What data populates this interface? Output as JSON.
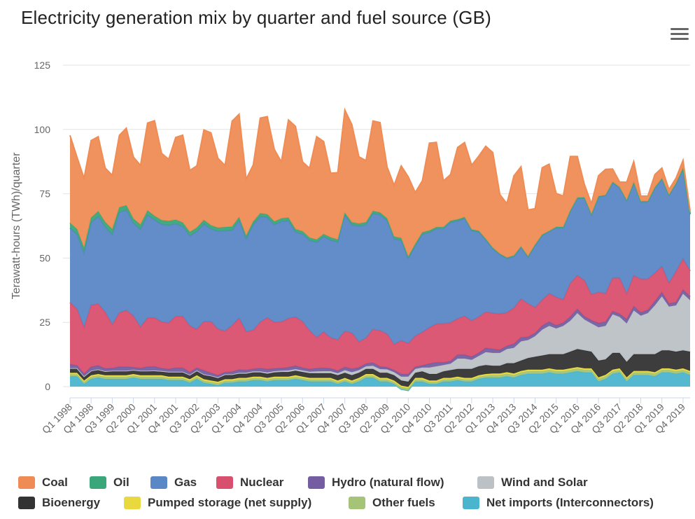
{
  "title": "Electricity generation mix by quarter and fuel source (GB)",
  "menu_icon": "hamburger-menu-icon",
  "chart_data": {
    "type": "area",
    "stacked": true,
    "title": "Electricity generation mix by quarter and fuel source (GB)",
    "xlabel": "",
    "ylabel": "Terawatt-hours (TWh)/quarter",
    "ylim": [
      0,
      125
    ],
    "yticks": [
      0,
      25,
      50,
      75,
      100,
      125
    ],
    "grid": true,
    "legend_position": "bottom",
    "x": [
      "Q1 1998",
      "Q2 1998",
      "Q3 1998",
      "Q4 1998",
      "Q1 1999",
      "Q2 1999",
      "Q3 1999",
      "Q4 1999",
      "Q1 2000",
      "Q2 2000",
      "Q3 2000",
      "Q4 2000",
      "Q1 2001",
      "Q2 2001",
      "Q3 2001",
      "Q4 2001",
      "Q1 2002",
      "Q2 2002",
      "Q3 2002",
      "Q4 2002",
      "Q1 2003",
      "Q2 2003",
      "Q3 2003",
      "Q4 2003",
      "Q1 2004",
      "Q2 2004",
      "Q3 2004",
      "Q4 2004",
      "Q1 2005",
      "Q2 2005",
      "Q3 2005",
      "Q4 2005",
      "Q1 2006",
      "Q2 2006",
      "Q3 2006",
      "Q4 2006",
      "Q1 2007",
      "Q2 2007",
      "Q3 2007",
      "Q4 2007",
      "Q1 2008",
      "Q2 2008",
      "Q3 2008",
      "Q4 2008",
      "Q1 2009",
      "Q2 2009",
      "Q3 2009",
      "Q4 2009",
      "Q1 2010",
      "Q2 2010",
      "Q3 2010",
      "Q4 2010",
      "Q1 2011",
      "Q2 2011",
      "Q3 2011",
      "Q4 2011",
      "Q1 2012",
      "Q2 2012",
      "Q3 2012",
      "Q4 2012",
      "Q1 2013",
      "Q2 2013",
      "Q3 2013",
      "Q4 2013",
      "Q1 2014",
      "Q2 2014",
      "Q3 2014",
      "Q4 2014",
      "Q1 2015",
      "Q2 2015",
      "Q3 2015",
      "Q4 2015",
      "Q1 2016",
      "Q2 2016",
      "Q3 2016",
      "Q4 2016",
      "Q1 2017",
      "Q2 2017",
      "Q3 2017",
      "Q4 2017",
      "Q1 2018",
      "Q2 2018",
      "Q3 2018",
      "Q4 2018",
      "Q1 2019",
      "Q2 2019",
      "Q3 2019",
      "Q4 2019",
      "Q1 2020"
    ],
    "x_tick_labels": [
      "Q1 1998",
      "Q4 1998",
      "Q3 1999",
      "Q2 2000",
      "Q1 2001",
      "Q4 2001",
      "Q3 2002",
      "Q2 2003",
      "Q1 2004",
      "Q4 2004",
      "Q3 2005",
      "Q2 2006",
      "Q1 2007",
      "Q4 2007",
      "Q3 2008",
      "Q2 2009",
      "Q1 2010",
      "Q4 2010",
      "Q3 2011",
      "Q2 2012",
      "Q1 2013",
      "Q4 2013",
      "Q3 2014",
      "Q2 2015",
      "Q1 2016",
      "Q4 2016",
      "Q3 2017",
      "Q2 2018",
      "Q1 2019",
      "Q4 2019"
    ],
    "series": [
      {
        "name": "Net imports (Interconnectors)",
        "color": "#4bb5ce",
        "values": [
          4,
          4,
          1,
          3,
          3.5,
          3,
          3,
          3,
          3,
          3.5,
          3,
          3,
          3,
          3,
          2.5,
          2.5,
          2.5,
          1.5,
          3,
          1.5,
          1,
          0.5,
          1.5,
          1.5,
          2,
          2,
          2.5,
          2.5,
          2,
          2.5,
          2.5,
          2.5,
          3,
          2.5,
          2,
          2,
          2,
          2,
          1,
          2,
          1,
          2,
          3.5,
          3.5,
          2,
          2,
          1,
          -1,
          -1.5,
          2,
          2,
          1,
          1,
          2,
          2,
          2.5,
          2,
          2,
          3,
          3.5,
          3.5,
          3.5,
          4,
          3.5,
          4.5,
          5,
          5,
          5,
          5.5,
          5,
          5,
          5.5,
          6,
          5.5,
          5.5,
          2,
          3,
          5,
          5.5,
          2,
          4.5,
          4.5,
          4.5,
          4,
          5.5,
          5.5,
          5,
          5.5,
          4.5
        ]
      },
      {
        "name": "Other fuels",
        "color": "#a5c477",
        "values": [
          0.8,
          0.8,
          0.8,
          0.8,
          0.8,
          0.8,
          0.8,
          0.8,
          0.8,
          0.8,
          0.8,
          0.8,
          0.8,
          0.8,
          0.8,
          0.8,
          0.8,
          0.8,
          0.8,
          0.8,
          0.8,
          0.8,
          0.8,
          0.8,
          0.8,
          0.8,
          0.8,
          0.8,
          0.8,
          0.8,
          0.8,
          0.8,
          0.8,
          0.8,
          0.8,
          0.8,
          0.8,
          0.8,
          0.8,
          0.8,
          0.8,
          0.8,
          0.8,
          0.8,
          0.8,
          0.8,
          0.8,
          0.8,
          0.8,
          0.8,
          0.8,
          0.8,
          0.8,
          0.8,
          0.8,
          0.8,
          0.8,
          0.8,
          0.8,
          0.8,
          1,
          1,
          1,
          1,
          1,
          1,
          1,
          1,
          1,
          1,
          1,
          1,
          1,
          1,
          1,
          1,
          1,
          1,
          1,
          1,
          1,
          1,
          1,
          1,
          1,
          1,
          1,
          1,
          1
        ]
      },
      {
        "name": "Pumped storage (net supply)",
        "color": "#e9d93f",
        "values": [
          0.6,
          0.6,
          0.6,
          0.6,
          0.6,
          0.6,
          0.6,
          0.6,
          0.6,
          0.6,
          0.6,
          0.6,
          0.6,
          0.6,
          0.6,
          0.6,
          0.6,
          0.6,
          0.6,
          0.6,
          0.6,
          0.6,
          0.6,
          0.6,
          0.6,
          0.6,
          0.6,
          0.6,
          0.6,
          0.6,
          0.6,
          0.6,
          0.6,
          0.6,
          0.6,
          0.6,
          0.6,
          0.6,
          0.6,
          0.6,
          0.6,
          0.6,
          0.6,
          0.6,
          0.6,
          0.6,
          0.6,
          0.6,
          0.6,
          0.6,
          0.6,
          0.6,
          0.6,
          0.6,
          0.6,
          0.6,
          0.6,
          0.6,
          0.6,
          0.6,
          0.6,
          0.6,
          0.6,
          0.6,
          0.6,
          0.6,
          0.6,
          0.6,
          0.6,
          0.6,
          0.6,
          0.6,
          0.6,
          0.6,
          0.6,
          0.6,
          0.6,
          0.6,
          0.6,
          0.6,
          0.6,
          0.6,
          0.6,
          0.6,
          0.6,
          0.6,
          0.6,
          0.6,
          0.6
        ]
      },
      {
        "name": "Bioenergy",
        "color": "#333333",
        "values": [
          1.6,
          1.6,
          1.4,
          1.6,
          1.6,
          1.4,
          1.6,
          1.6,
          1.6,
          1.4,
          1.6,
          1.6,
          1.6,
          1.4,
          1.6,
          1.6,
          1.6,
          1.4,
          1.6,
          1.6,
          1.6,
          1.4,
          1.6,
          1.6,
          1.6,
          1.6,
          1.6,
          1.6,
          1.6,
          1.6,
          1.8,
          1.8,
          1.8,
          1.8,
          1.8,
          1.8,
          1.8,
          1.8,
          2,
          2,
          2,
          2,
          2,
          2,
          2,
          2,
          2,
          2,
          2,
          2,
          2.5,
          2.5,
          2.5,
          2.5,
          3,
          3,
          3.5,
          3.5,
          3.5,
          3.5,
          3,
          3,
          3.5,
          4,
          4,
          4.5,
          5,
          5.5,
          5.5,
          6,
          6,
          6.5,
          7,
          7,
          6.5,
          6.5,
          6,
          6.5,
          6,
          6,
          6.5,
          6.5,
          6.5,
          7,
          7,
          7,
          7,
          7,
          7.5
        ]
      },
      {
        "name": "Wind and Solar",
        "color": "#bcc1c6",
        "values": [
          0.2,
          0.2,
          0.2,
          0.2,
          0.2,
          0.2,
          0.2,
          0.2,
          0.2,
          0.2,
          0.2,
          0.2,
          0.3,
          0.3,
          0.3,
          0.3,
          0.3,
          0.3,
          0.3,
          0.3,
          0.3,
          0.3,
          0.3,
          0.3,
          0.4,
          0.4,
          0.4,
          0.4,
          0.5,
          0.5,
          0.5,
          0.6,
          0.6,
          0.6,
          0.6,
          0.7,
          0.8,
          0.8,
          0.8,
          1,
          1.2,
          1,
          1,
          1.2,
          1.4,
          1.3,
          1.2,
          1.5,
          2,
          1.5,
          1.5,
          2.5,
          3,
          2.5,
          2.5,
          4,
          4,
          3.5,
          4,
          5,
          5,
          5,
          5.5,
          6,
          7.5,
          7,
          8,
          10,
          11,
          10,
          11,
          12,
          14,
          12,
          11,
          13,
          13,
          15,
          14,
          15,
          17,
          15,
          16,
          19,
          21,
          17,
          18,
          22,
          20
        ]
      },
      {
        "name": "Hydro (natural flow)",
        "color": "#745ea1",
        "values": [
          1.5,
          1,
          1,
          1.5,
          1.5,
          1,
          1,
          1.5,
          1.5,
          1,
          1,
          1.5,
          1.5,
          1,
          1,
          1.5,
          1.5,
          1,
          1,
          1.5,
          1,
          0.8,
          0.8,
          1,
          1.2,
          1,
          1,
          1.2,
          1.3,
          1,
          1,
          1.2,
          1.3,
          1,
          1,
          1.2,
          1.3,
          1,
          1,
          1.2,
          1.3,
          1,
          1,
          1.2,
          1,
          0.8,
          0.8,
          1,
          0.9,
          0.8,
          0.8,
          1.5,
          1.5,
          1,
          1,
          1.5,
          1.5,
          1.2,
          1.2,
          1.6,
          1.5,
          1.2,
          1.2,
          1.5,
          1.5,
          1.2,
          1.2,
          1.6,
          1.6,
          1.2,
          1.2,
          1.6,
          1.6,
          1.2,
          1.2,
          1.6,
          1.6,
          1.2,
          1.2,
          1.6,
          1.6,
          1.2,
          1.2,
          1.6,
          1.6,
          1.2,
          1.2,
          1.6,
          1.4
        ]
      },
      {
        "name": "Nuclear",
        "color": "#d9506e",
        "values": [
          24,
          22,
          18,
          24,
          24,
          22,
          17,
          21,
          22,
          20,
          16,
          19,
          19,
          18,
          18,
          20,
          20,
          18,
          15,
          19,
          20,
          18,
          16,
          18,
          20,
          15,
          15,
          18,
          20,
          18,
          18,
          19,
          19,
          18,
          15,
          12,
          14,
          12,
          12,
          14,
          14,
          10,
          10,
          13,
          14,
          13,
          10,
          13,
          12,
          12,
          13,
          14,
          15,
          15,
          15,
          14,
          15,
          14,
          14,
          14,
          14,
          14,
          13,
          14,
          15,
          13,
          10,
          10,
          11,
          11,
          9,
          13,
          13,
          14,
          10,
          12,
          11,
          13,
          14,
          10,
          12,
          13,
          12,
          11,
          10,
          8,
          12,
          12,
          10
        ]
      },
      {
        "name": "Gas",
        "color": "#5a87c5",
        "values": [
          29,
          29,
          29,
          32,
          34,
          33,
          35,
          39,
          39,
          36,
          38,
          40,
          38,
          38,
          38,
          36,
          35,
          35,
          38,
          38,
          36,
          38,
          39,
          37,
          38,
          36,
          41,
          41,
          39,
          38,
          39,
          38,
          33,
          34,
          35,
          37,
          37,
          38,
          38,
          45,
          42,
          45,
          44,
          45,
          45,
          44,
          41,
          39,
          33,
          35,
          38,
          37,
          37,
          37,
          39,
          38,
          38,
          35,
          33,
          28,
          25,
          23,
          21,
          20,
          20,
          18,
          24,
          25,
          24,
          27,
          28,
          28,
          30,
          32,
          31,
          37,
          38,
          37,
          35,
          36,
          36,
          30,
          30,
          33,
          34,
          34,
          34,
          35,
          22
        ]
      },
      {
        "name": "Oil",
        "color": "#3aa77a",
        "values": [
          2,
          2,
          2,
          2,
          2,
          2,
          2,
          2,
          1.8,
          1.8,
          1.8,
          1.8,
          1.6,
          1.6,
          1.6,
          1.6,
          1.5,
          1.5,
          1.5,
          1.5,
          1.4,
          1.4,
          1.4,
          1.4,
          1.3,
          1.3,
          1.3,
          1.3,
          1.2,
          1.2,
          1.2,
          1.2,
          1.1,
          1.1,
          1.1,
          1.1,
          1,
          1,
          1,
          1,
          1,
          1,
          1,
          1,
          0.9,
          0.9,
          0.9,
          0.9,
          0.8,
          0.8,
          0.8,
          0.8,
          0.6,
          0.6,
          0.6,
          0.6,
          0.5,
          0.5,
          0.5,
          0.5,
          0.4,
          0.4,
          0.4,
          0.4,
          0.4,
          0.4,
          0.4,
          0.4,
          0.3,
          0.3,
          0.3,
          0.3,
          0.3,
          0.3,
          0.3,
          0.3,
          0.3,
          0.3,
          0.3,
          0.3,
          0.3,
          0.3,
          0.3,
          0.3,
          0.3,
          0.3,
          0.3,
          0.3,
          0.3
        ]
      },
      {
        "name": "Coal",
        "color": "#ef8c55",
        "values": [
          34,
          28,
          27,
          30,
          29,
          21,
          21,
          28,
          30,
          24,
          23,
          34,
          37,
          26,
          24,
          32,
          34,
          24,
          24,
          35,
          36,
          27,
          24,
          41,
          40,
          22,
          22,
          37,
          38,
          28,
          22,
          38,
          40,
          27,
          27,
          40,
          36,
          25,
          26,
          40,
          38,
          26,
          24,
          35,
          35,
          20,
          20,
          28,
          31,
          20,
          20,
          34,
          33,
          18,
          18,
          28,
          29,
          25,
          29,
          36,
          37,
          23,
          21,
          31,
          31,
          18,
          14,
          26,
          26,
          13,
          12,
          21,
          16,
          5,
          4,
          8,
          10,
          5,
          2,
          7,
          8,
          2,
          2,
          5,
          4,
          2,
          2,
          3,
          1
        ]
      }
    ]
  },
  "legend": {
    "items": [
      {
        "name": "Coal",
        "color": "#ef8c55"
      },
      {
        "name": "Oil",
        "color": "#3aa77a"
      },
      {
        "name": "Gas",
        "color": "#5a87c5"
      },
      {
        "name": "Nuclear",
        "color": "#d9506e"
      },
      {
        "name": "Hydro (natural flow)",
        "color": "#745ea1"
      },
      {
        "name": "Wind and Solar",
        "color": "#bcc1c6"
      },
      {
        "name": "Bioenergy",
        "color": "#333333"
      },
      {
        "name": "Pumped storage (net supply)",
        "color": "#e9d93f"
      },
      {
        "name": "Other fuels",
        "color": "#a5c477"
      },
      {
        "name": "Net imports (Interconnectors)",
        "color": "#4bb5ce"
      }
    ]
  }
}
